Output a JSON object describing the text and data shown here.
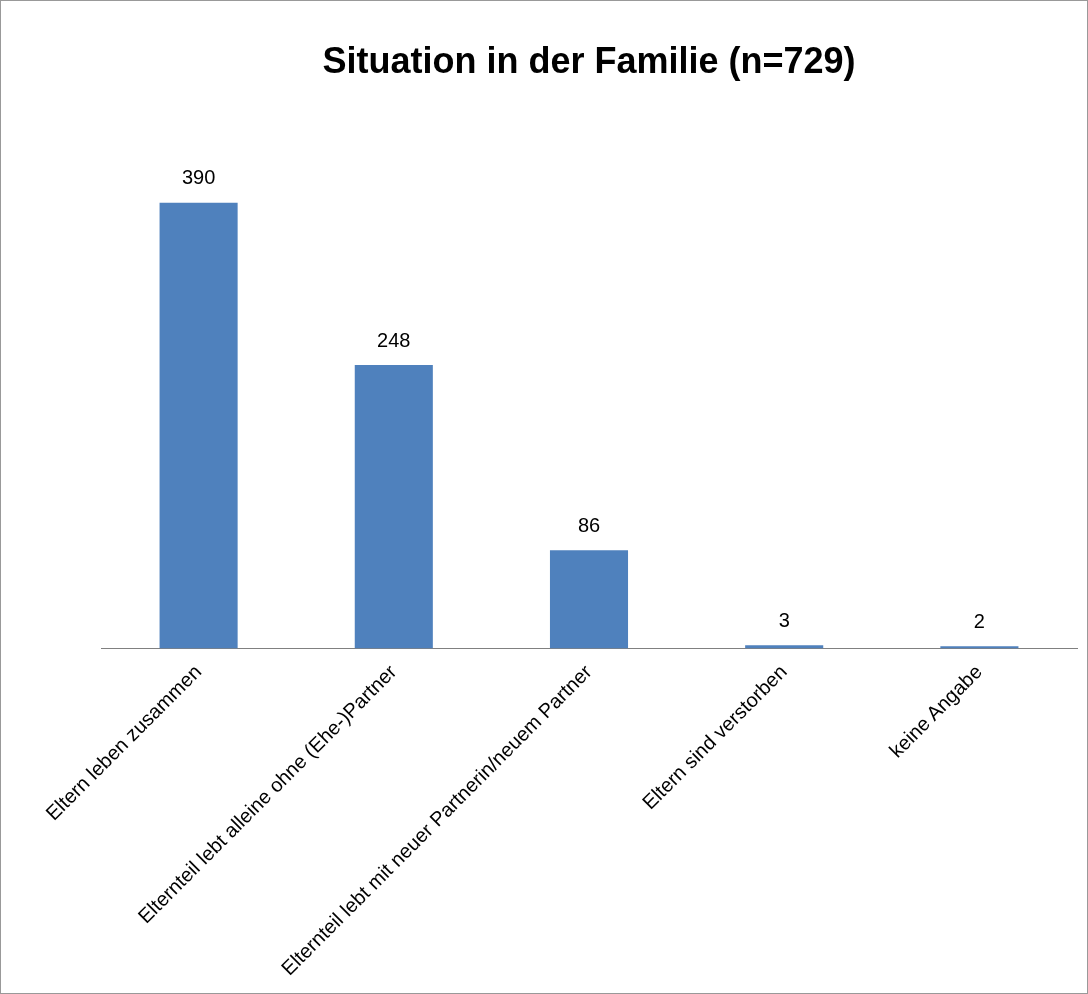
{
  "chart_data": {
    "type": "bar",
    "title": "Situation in der Familie (n=729)",
    "categories": [
      "Eltern leben zusammen",
      "Elternteil lebt alleine ohne (Ehe-)Partner",
      "Elternteil lebt mit neuer Partnerin/neuem Partner",
      "Eltern sind verstorben",
      "keine Angabe"
    ],
    "values": [
      390,
      248,
      86,
      3,
      2
    ],
    "color": "#4f81bd",
    "data_labels": true,
    "grid": false,
    "legend": false
  }
}
